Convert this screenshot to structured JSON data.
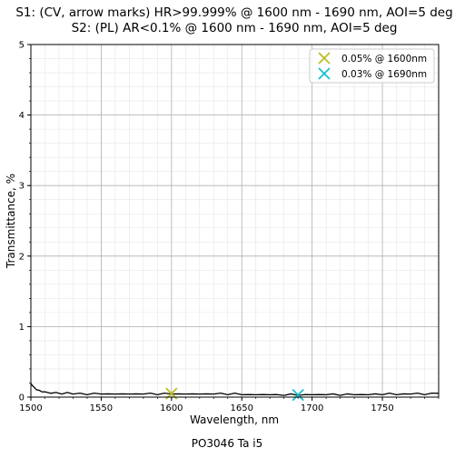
{
  "chart_data": {
    "type": "line",
    "title_lines": [
      "S1: (CV, arrow marks) HR>99.999% @ 1600 nm - 1690 nm, AOI=5 deg",
      "S2: (PL) AR<0.1% @ 1600 nm - 1690 nm, AOI=5 deg"
    ],
    "xlabel": "Wavelength, nm",
    "ylabel": "Transmittance, %",
    "footer": "PO3046 Ta i5",
    "xlim": [
      1500,
      1790
    ],
    "ylim": [
      0,
      5
    ],
    "x_ticks": [
      1500,
      1550,
      1600,
      1650,
      1700,
      1750
    ],
    "y_ticks": [
      0,
      1,
      2,
      3,
      4,
      5
    ],
    "grid": true,
    "legend_position": "top-right",
    "series": [
      {
        "color": "#000000",
        "x": [
          1500,
          1501,
          1502,
          1504,
          1506,
          1508,
          1510,
          1514,
          1518,
          1522,
          1526,
          1530,
          1535,
          1540,
          1545,
          1550,
          1555,
          1560,
          1565,
          1570,
          1575,
          1580,
          1585,
          1590,
          1595,
          1600,
          1605,
          1610,
          1615,
          1620,
          1625,
          1630,
          1635,
          1640,
          1645,
          1650,
          1655,
          1660,
          1665,
          1670,
          1675,
          1680,
          1685,
          1690,
          1695,
          1700,
          1705,
          1710,
          1715,
          1720,
          1725,
          1730,
          1735,
          1740,
          1745,
          1750,
          1755,
          1760,
          1765,
          1770,
          1775,
          1780,
          1785,
          1790
        ],
        "y": [
          0.19,
          0.17,
          0.14,
          0.11,
          0.09,
          0.08,
          0.07,
          0.06,
          0.06,
          0.05,
          0.06,
          0.05,
          0.05,
          0.04,
          0.05,
          0.05,
          0.04,
          0.05,
          0.04,
          0.05,
          0.04,
          0.05,
          0.05,
          0.04,
          0.05,
          0.05,
          0.04,
          0.05,
          0.04,
          0.05,
          0.04,
          0.05,
          0.05,
          0.04,
          0.05,
          0.04,
          0.03,
          0.04,
          0.03,
          0.04,
          0.03,
          0.03,
          0.04,
          0.03,
          0.03,
          0.04,
          0.03,
          0.04,
          0.04,
          0.03,
          0.04,
          0.04,
          0.03,
          0.04,
          0.04,
          0.04,
          0.05,
          0.04,
          0.04,
          0.05,
          0.05,
          0.04,
          0.05,
          0.06
        ]
      }
    ],
    "markers": [
      {
        "label": "0.05% @ 1600nm",
        "x": 1600,
        "y": 0.05,
        "color": "#bcbd22",
        "symbol": "x"
      },
      {
        "label": "0.03% @ 1690nm",
        "x": 1690,
        "y": 0.03,
        "color": "#17becf",
        "symbol": "x"
      }
    ]
  }
}
